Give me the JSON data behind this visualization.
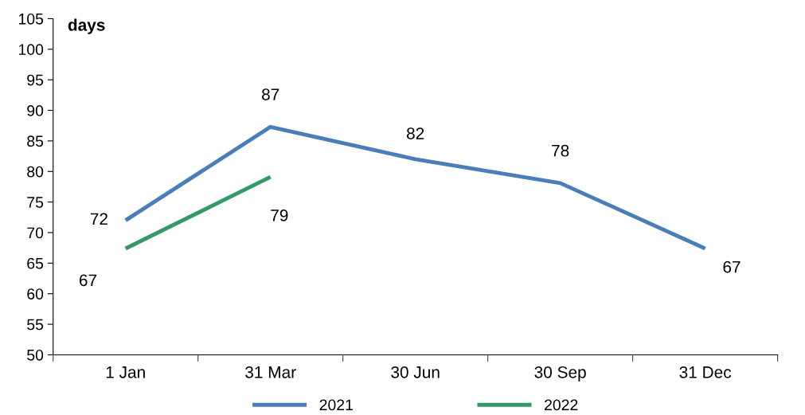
{
  "chart_data": {
    "type": "line",
    "ylabel": "days",
    "categories": [
      "1 Jan",
      "31 Mar",
      "30 Jun",
      "30 Sep",
      "31 Dec"
    ],
    "series": [
      {
        "name": "2021",
        "color": "#4a7ebb",
        "values": [
          72,
          87.3,
          82,
          78.1,
          67.4
        ],
        "value_labels": [
          "72",
          "87",
          "82",
          "78",
          "67"
        ]
      },
      {
        "name": "2022",
        "color": "#339966",
        "values": [
          67.4,
          79.1,
          null,
          null,
          null
        ],
        "value_labels": [
          "67",
          "79",
          null,
          null,
          null
        ]
      }
    ],
    "ylim": [
      50,
      105
    ],
    "yticks": [
      50,
      55,
      60,
      65,
      70,
      75,
      80,
      85,
      90,
      95,
      100,
      105
    ],
    "grid": false,
    "legend": "bottom",
    "marker": "none",
    "line_style": "solid"
  }
}
